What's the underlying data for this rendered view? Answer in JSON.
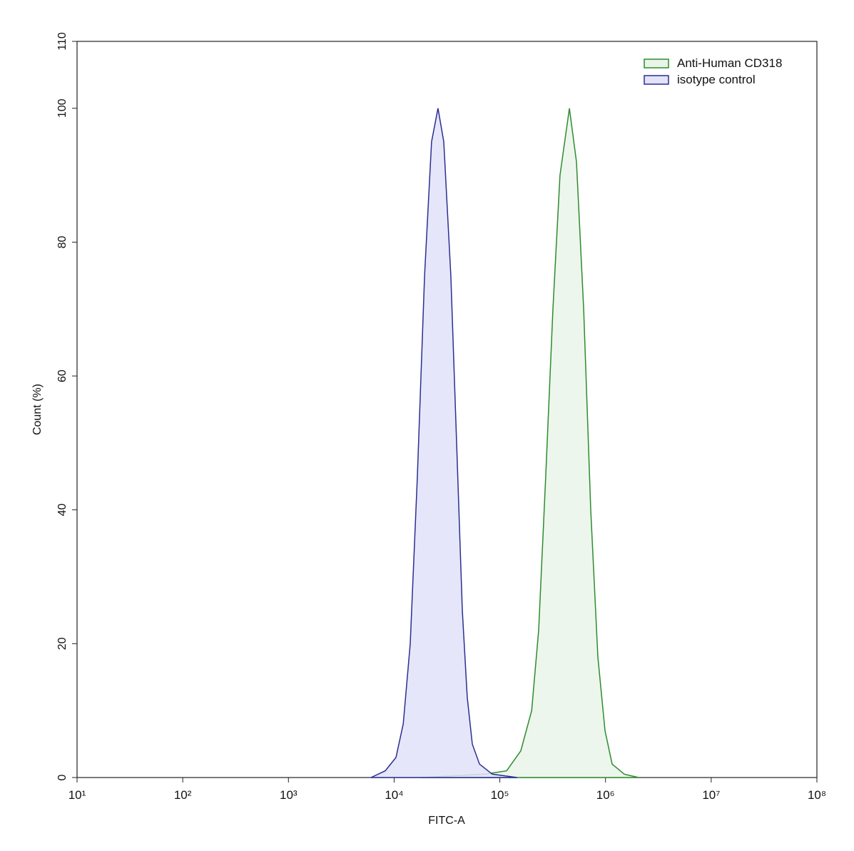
{
  "chart_data": {
    "type": "area",
    "x_label": "FITC-A",
    "y_label": "Count (%)",
    "xscale": "log",
    "xlim": [
      10,
      100000000
    ],
    "xticks": [
      {
        "value": 10,
        "label": "10¹"
      },
      {
        "value": 100,
        "label": "10²"
      },
      {
        "value": 1000,
        "label": "10³"
      },
      {
        "value": 10000,
        "label": "10⁴"
      },
      {
        "value": 100000,
        "label": "10⁵"
      },
      {
        "value": 1000000,
        "label": "10⁶"
      },
      {
        "value": 10000000,
        "label": "10⁷"
      },
      {
        "value": 100000000,
        "label": "10⁸"
      }
    ],
    "ylim": [
      0,
      110
    ],
    "yticks": [
      0,
      20,
      40,
      60,
      80,
      100,
      110
    ],
    "legend": "top-right",
    "series": [
      {
        "name": "Anti-Human CD318",
        "color": "#2e8b2e",
        "fill": "#e9f5e9",
        "x": [
          17900,
          72600,
          116000,
          158000,
          200000,
          233000,
          272000,
          318000,
          371000,
          455000,
          531000,
          621000,
          725000,
          847000,
          989000,
          1156000,
          1506000,
          2056000
        ],
        "values": [
          0,
          0.5,
          1,
          4,
          10,
          22,
          45,
          70,
          90,
          100,
          92,
          70,
          40,
          18,
          7,
          2,
          0.5,
          0
        ]
      },
      {
        "name": "isotype control",
        "color": "#2b2f8f",
        "fill": "#e2e2fa",
        "x": [
          6040,
          8240,
          10400,
          12200,
          14200,
          16600,
          19400,
          22600,
          26000,
          29500,
          34400,
          39000,
          44200,
          49200,
          54900,
          64200,
          84900,
          146000
        ],
        "values": [
          0,
          1,
          3,
          8,
          20,
          45,
          75,
          95,
          100,
          95,
          75,
          50,
          25,
          12,
          5,
          2,
          0.5,
          0
        ]
      }
    ]
  }
}
